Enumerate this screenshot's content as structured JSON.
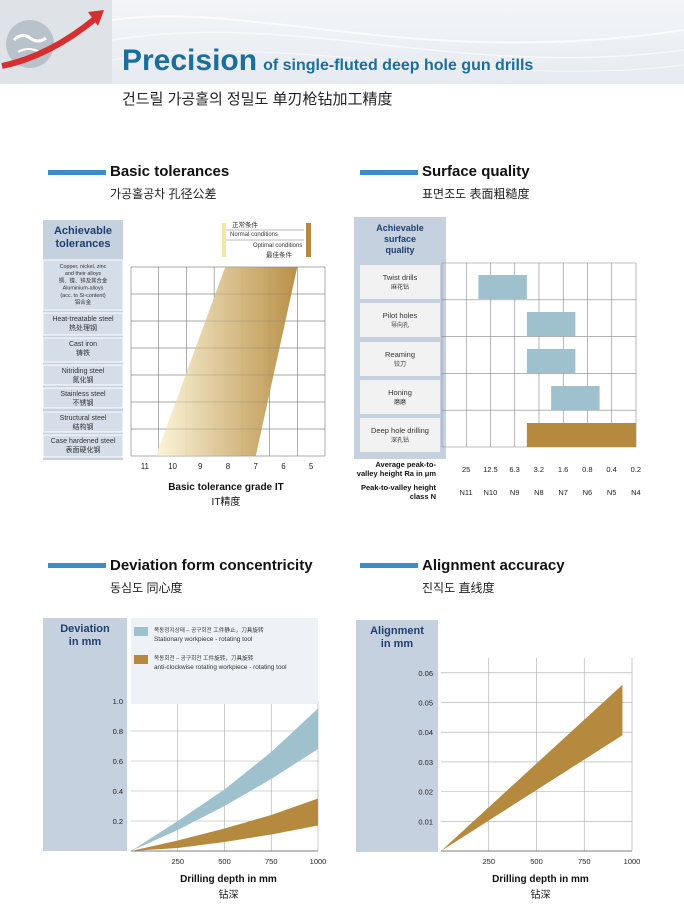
{
  "header": {
    "title_main": "Precision",
    "title_sub": "of single-fluted deep hole gun drills",
    "title_cn": "건드릴 가공홀의 정밀도   单刃枪钻加工精度"
  },
  "sections": {
    "basic": {
      "title": "Basic tolerances",
      "subtitle": "가공홀공차  孔径公差"
    },
    "surface": {
      "title": "Surface quality",
      "subtitle": "표면조도  表面粗糙度"
    },
    "deviation": {
      "title": "Deviation form concentricity",
      "subtitle": "동심도  同心度"
    },
    "alignment": {
      "title": "Alignment accuracy",
      "subtitle": "진직도  直线度"
    }
  },
  "chart_data": [
    {
      "id": "basic_tolerances",
      "type": "area",
      "panel_label": "Achievable tolerances",
      "categories": [
        "Copper, nickel, zinc and their alloys 铜、镍、锌及其合金 Aluminium-alloys (acc. to Si-content) 铝合金",
        "Heat-treatable steel 热处理钢",
        "Cast iron 铸铁",
        "Nitriding steel 氮化钢",
        "Stainless steel 不锈钢",
        "Structural steel 结构钢",
        "Case hardened steel 表面硬化钢"
      ],
      "category_lines": [
        [
          "Copper, nickel, zinc",
          "and their alloys",
          "铜、镍、锌及其合金",
          "Aluminium-alloys",
          "(acc. to Si-content)",
          "铝合金"
        ],
        [
          "Heat-treatable steel",
          "热处理钢"
        ],
        [
          "Cast iron",
          "铸铁"
        ],
        [
          "Nitriding steel",
          "氮化钢"
        ],
        [
          "Stainless steel",
          "不锈钢"
        ],
        [
          "Structural steel",
          "结构钢"
        ],
        [
          "Case hardened steel",
          "表面硬化钢"
        ]
      ],
      "x_ticks": [
        "11",
        "10",
        "9",
        "8",
        "7",
        "6",
        "5"
      ],
      "xlabel": "Basic tolerance grade IT",
      "xlabel_cn": "IT精度",
      "series": [
        {
          "name": "正常条件 Normal conditions",
          "top_grade": 8.1,
          "bottom_grade": 10.6,
          "color": "#f6edc0"
        },
        {
          "name": "Optimal conditions 最佳条件",
          "top_grade": 5.5,
          "bottom_grade": 7.0,
          "color": "#b58a3e"
        }
      ],
      "legend_normal": [
        "正常条件",
        "Normal conditions"
      ],
      "legend_optimal": [
        "Optimal conditions",
        "最佳条件"
      ]
    },
    {
      "id": "surface_quality",
      "type": "bar",
      "panel_label": "Achievable surface quality",
      "categories": [
        "Twist drills 麻花钻",
        "Pilot holes 导向孔",
        "Reaming 铰刀",
        "Honing 磨磨",
        "Deep hole drilling 深孔钻"
      ],
      "category_lines": [
        [
          "Twist drills",
          "麻花钻"
        ],
        [
          "Pilot holes",
          "导向孔"
        ],
        [
          "Reaming",
          "铰刀"
        ],
        [
          "Honing",
          "磨磨"
        ],
        [
          "Deep hole drilling",
          "深孔钻"
        ]
      ],
      "ra_ticks": [
        "25",
        "12.5",
        "6.3",
        "3.2",
        "1.6",
        "0.8",
        "0.4",
        "0.2"
      ],
      "n_ticks": [
        "N11",
        "N10",
        "N9",
        "N8",
        "N7",
        "N6",
        "N5",
        "N4"
      ],
      "ra_label": [
        "Average peak-to-",
        "valley height Ra in μm"
      ],
      "n_label": [
        "Peak-to-valley height",
        "class N"
      ],
      "ranges_ra": [
        [
          12.5,
          3.2
        ],
        [
          3.2,
          0.8
        ],
        [
          3.2,
          0.8
        ],
        [
          1.6,
          0.4
        ],
        [
          3.2,
          0.2
        ]
      ],
      "colors": [
        "#9fc0cd",
        "#9fc0cd",
        "#9fc0cd",
        "#9fc0cd",
        "#b58a3e"
      ]
    },
    {
      "id": "deviation",
      "type": "area",
      "panel_label": "Deviation in mm",
      "x_ticks": [
        250,
        500,
        750,
        1000
      ],
      "y_ticks": [
        "0.2",
        "0.4",
        "0.6",
        "0.8",
        "1.0"
      ],
      "xlim": [
        0,
        1000
      ],
      "ylim": [
        0,
        1.0
      ],
      "xlabel": "Drilling depth in mm",
      "xlabel_cn": "钻深",
      "legend": [
        {
          "lines": [
            "목동정지상태 – 공구회전  工件静止，刀具旋转",
            "Stationary workpiece - rotating tool"
          ],
          "color": "#9fc0cd"
        },
        {
          "lines": [
            "목동회전 – 공구회전  工件旋转，刀具旋转",
            "anti-clockwise rotating workpiece - rotating tool"
          ],
          "color": "#b58a3e"
        }
      ],
      "series": [
        {
          "name": "Stationary workpiece - rotating tool",
          "x": [
            0,
            250,
            500,
            750,
            1000
          ],
          "upper": [
            0,
            0.2,
            0.41,
            0.66,
            0.95
          ],
          "lower": [
            0,
            0.14,
            0.3,
            0.48,
            0.68
          ],
          "color": "#9fc0cd"
        },
        {
          "name": "anti-clockwise rotating workpiece - rotating tool",
          "x": [
            0,
            250,
            500,
            750,
            1000
          ],
          "upper": [
            0,
            0.07,
            0.15,
            0.24,
            0.35
          ],
          "lower": [
            0,
            0.02,
            0.06,
            0.11,
            0.17
          ],
          "color": "#b58a3e"
        }
      ]
    },
    {
      "id": "alignment",
      "type": "area",
      "panel_label": "Alignment in mm",
      "x_ticks": [
        250,
        500,
        750,
        1000
      ],
      "y_ticks": [
        "0.01",
        "0.02",
        "0.03",
        "0.04",
        "0.05",
        "0.06"
      ],
      "xlim": [
        0,
        1000
      ],
      "ylim": [
        0,
        0.065
      ],
      "xlabel": "Drilling depth in mm",
      "xlabel_cn": "钻深",
      "series": [
        {
          "x": [
            0,
            950
          ],
          "upper": [
            0,
            0.056
          ],
          "lower": [
            0,
            0.039
          ],
          "color": "#b58a3e"
        }
      ]
    }
  ]
}
